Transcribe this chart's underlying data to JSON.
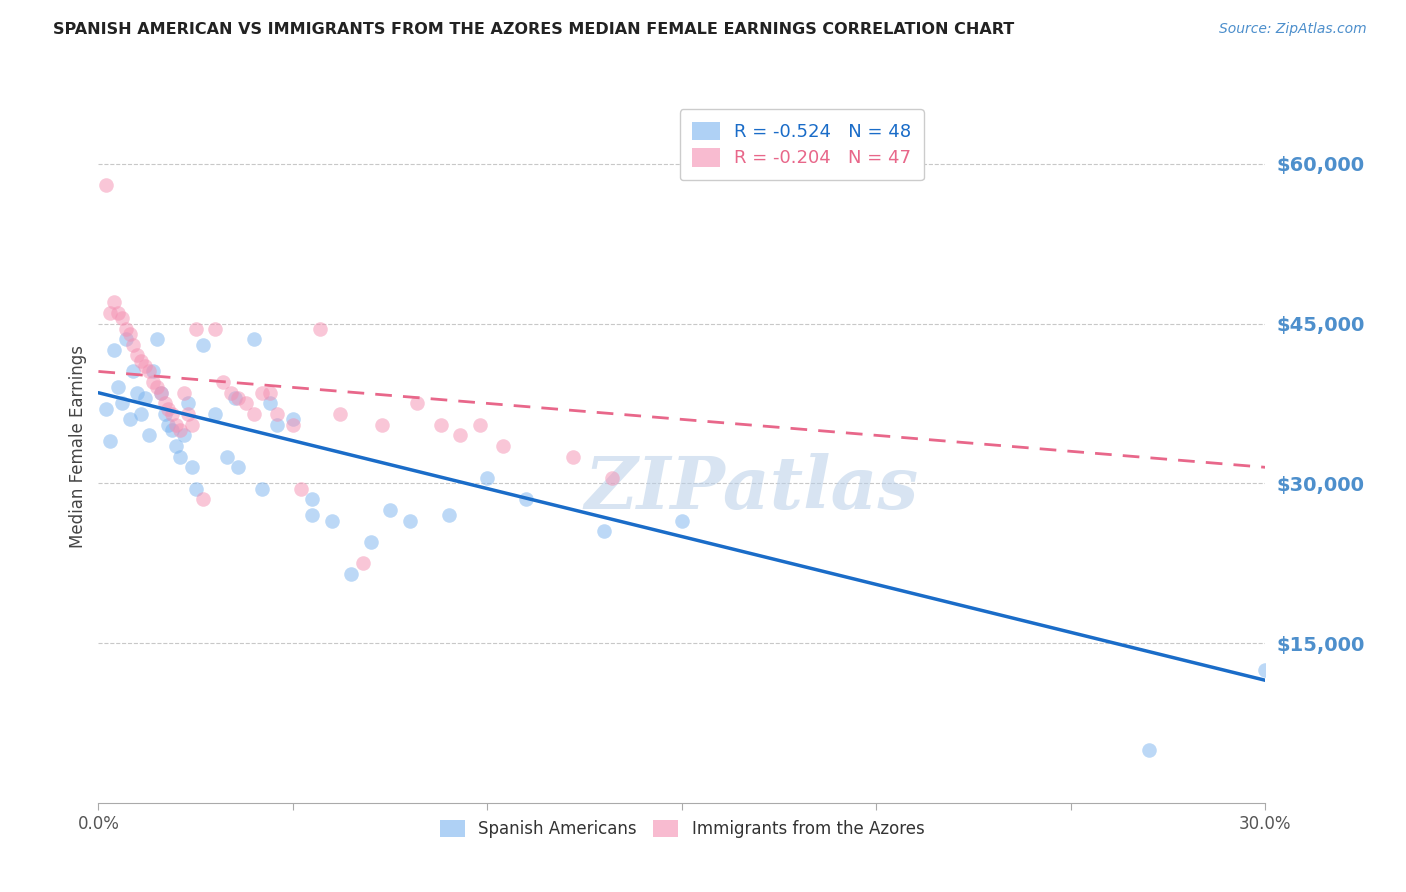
{
  "title": "SPANISH AMERICAN VS IMMIGRANTS FROM THE AZORES MEDIAN FEMALE EARNINGS CORRELATION CHART",
  "source": "Source: ZipAtlas.com",
  "ylabel": "Median Female Earnings",
  "y_ticks": [
    15000,
    30000,
    45000,
    60000
  ],
  "y_tick_labels": [
    "$15,000",
    "$30,000",
    "$45,000",
    "$60,000"
  ],
  "xlim": [
    0.0,
    0.3
  ],
  "ylim": [
    0,
    67000
  ],
  "legend_blue": "R = -0.524   N = 48",
  "legend_pink": "R = -0.204   N = 47",
  "blue_scatter": [
    [
      0.002,
      37000
    ],
    [
      0.003,
      34000
    ],
    [
      0.004,
      42500
    ],
    [
      0.005,
      39000
    ],
    [
      0.006,
      37500
    ],
    [
      0.007,
      43500
    ],
    [
      0.008,
      36000
    ],
    [
      0.009,
      40500
    ],
    [
      0.01,
      38500
    ],
    [
      0.011,
      36500
    ],
    [
      0.012,
      38000
    ],
    [
      0.013,
      34500
    ],
    [
      0.014,
      40500
    ],
    [
      0.015,
      43500
    ],
    [
      0.016,
      38500
    ],
    [
      0.017,
      36500
    ],
    [
      0.018,
      35500
    ],
    [
      0.019,
      35000
    ],
    [
      0.02,
      33500
    ],
    [
      0.021,
      32500
    ],
    [
      0.022,
      34500
    ],
    [
      0.023,
      37500
    ],
    [
      0.024,
      31500
    ],
    [
      0.025,
      29500
    ],
    [
      0.027,
      43000
    ],
    [
      0.03,
      36500
    ],
    [
      0.033,
      32500
    ],
    [
      0.036,
      31500
    ],
    [
      0.04,
      43500
    ],
    [
      0.042,
      29500
    ],
    [
      0.044,
      37500
    ],
    [
      0.046,
      35500
    ],
    [
      0.05,
      36000
    ],
    [
      0.055,
      28500
    ],
    [
      0.06,
      26500
    ],
    [
      0.065,
      21500
    ],
    [
      0.07,
      24500
    ],
    [
      0.075,
      27500
    ],
    [
      0.08,
      26500
    ],
    [
      0.09,
      27000
    ],
    [
      0.1,
      30500
    ],
    [
      0.11,
      28500
    ],
    [
      0.13,
      25500
    ],
    [
      0.15,
      26500
    ],
    [
      0.055,
      27000
    ],
    [
      0.035,
      38000
    ],
    [
      0.27,
      5000
    ],
    [
      0.3,
      12500
    ]
  ],
  "pink_scatter": [
    [
      0.002,
      58000
    ],
    [
      0.003,
      46000
    ],
    [
      0.004,
      47000
    ],
    [
      0.005,
      46000
    ],
    [
      0.006,
      45500
    ],
    [
      0.007,
      44500
    ],
    [
      0.008,
      44000
    ],
    [
      0.009,
      43000
    ],
    [
      0.01,
      42000
    ],
    [
      0.011,
      41500
    ],
    [
      0.012,
      41000
    ],
    [
      0.013,
      40500
    ],
    [
      0.014,
      39500
    ],
    [
      0.015,
      39000
    ],
    [
      0.016,
      38500
    ],
    [
      0.017,
      37500
    ],
    [
      0.018,
      37000
    ],
    [
      0.019,
      36500
    ],
    [
      0.02,
      35500
    ],
    [
      0.021,
      35000
    ],
    [
      0.022,
      38500
    ],
    [
      0.023,
      36500
    ],
    [
      0.024,
      35500
    ],
    [
      0.025,
      44500
    ],
    [
      0.027,
      28500
    ],
    [
      0.03,
      44500
    ],
    [
      0.032,
      39500
    ],
    [
      0.034,
      38500
    ],
    [
      0.036,
      38000
    ],
    [
      0.038,
      37500
    ],
    [
      0.04,
      36500
    ],
    [
      0.042,
      38500
    ],
    [
      0.044,
      38500
    ],
    [
      0.046,
      36500
    ],
    [
      0.05,
      35500
    ],
    [
      0.052,
      29500
    ],
    [
      0.057,
      44500
    ],
    [
      0.062,
      36500
    ],
    [
      0.068,
      22500
    ],
    [
      0.073,
      35500
    ],
    [
      0.082,
      37500
    ],
    [
      0.088,
      35500
    ],
    [
      0.093,
      34500
    ],
    [
      0.098,
      35500
    ],
    [
      0.104,
      33500
    ],
    [
      0.122,
      32500
    ],
    [
      0.132,
      30500
    ]
  ],
  "blue_line_y0": 38500,
  "blue_line_y1": 11500,
  "pink_line_y0": 40500,
  "pink_line_y1": 31500,
  "blue_color": "#7ab3ef",
  "pink_color": "#f48fb1",
  "blue_line_color": "#1a6cc8",
  "pink_line_color": "#e8678a",
  "watermark": "ZIPatlas",
  "tick_color": "#4d8fcc",
  "grid_color": "#c8c8c8",
  "background": "#ffffff",
  "label_blue": "Spanish Americans",
  "label_pink": "Immigrants from the Azores"
}
